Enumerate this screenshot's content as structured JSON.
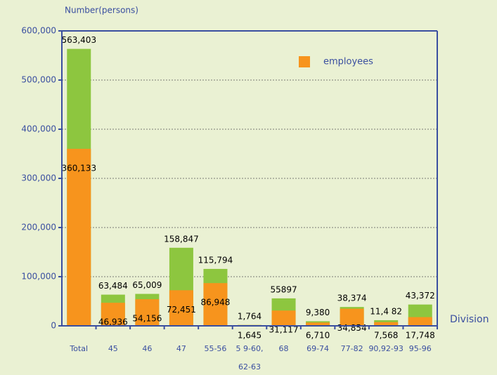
{
  "chart_data": {
    "type": "bar",
    "overlap": true,
    "y_axis_label": "Number(persons)",
    "x_axis_label": "Division",
    "categories": [
      "Total",
      "45",
      "46",
      "47",
      "55-56",
      "5 9-60, 62-63",
      "68",
      "69-74",
      "77-82",
      "90,92-93",
      "95-96"
    ],
    "series": [
      {
        "color": "#8dc63f",
        "values": [
          563403,
          63484,
          65009,
          158847,
          115794,
          1764,
          55897,
          9380,
          38374,
          11482,
          43372
        ],
        "value_labels": [
          "563,403",
          "63,484",
          "65,009",
          "158,847",
          "115,794",
          "1,764",
          "55897",
          "9,380",
          "38,374",
          "11,4 82",
          "43,372"
        ]
      },
      {
        "name": "employees",
        "color": "#f7941d",
        "values": [
          360133,
          46936,
          54156,
          72451,
          86948,
          1645,
          31117,
          6710,
          34854,
          7568,
          17748
        ],
        "value_labels": [
          "360,133",
          "46,936",
          "54,156",
          "72,451",
          "86,948",
          "1,645",
          "31,117",
          "6,710",
          "34,854",
          "7,568",
          "17,748"
        ]
      }
    ],
    "ylim": [
      0,
      600000
    ],
    "yticks": [
      0,
      {
        "value": 100000,
        "label": "100,000"
      },
      {
        "value": 200000,
        "label": "200,000"
      },
      {
        "value": 300000,
        "label": "300,000"
      },
      {
        "value": 400000,
        "label": "400,000"
      },
      {
        "value": 500000,
        "label": "500,000"
      },
      {
        "value": 600000,
        "label": "600,000"
      }
    ],
    "grid": true,
    "legend": "upper right"
  }
}
